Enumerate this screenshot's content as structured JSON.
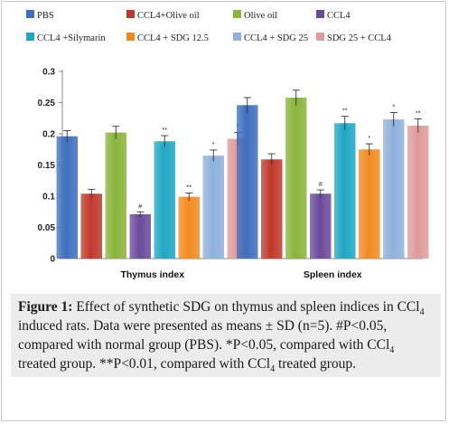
{
  "chart_data": {
    "type": "bar",
    "categories": [
      "Thymus index",
      "Spleen index"
    ],
    "ylim": [
      0,
      0.3
    ],
    "yticks": [
      "0",
      "0.05",
      "0.1",
      "0.15",
      "0.2",
      "0.25",
      "0.3"
    ],
    "legend_position": "top",
    "series": [
      {
        "name": "PBS",
        "color": "#3f6fbf",
        "values": [
          0.196,
          0.246
        ],
        "errors": [
          0.009,
          0.012
        ],
        "sig": [
          "",
          ""
        ]
      },
      {
        "name": "CCL4+Olive oil",
        "color": "#c0392b",
        "values": [
          0.104,
          0.159
        ],
        "errors": [
          0.007,
          0.009
        ],
        "sig": [
          "",
          ""
        ]
      },
      {
        "name": "Olive oil",
        "color": "#8ab43a",
        "values": [
          0.202,
          0.258
        ],
        "errors": [
          0.01,
          0.012
        ],
        "sig": [
          "",
          ""
        ]
      },
      {
        "name": "CCL4",
        "color": "#6b4a9a",
        "values": [
          0.071,
          0.104
        ],
        "errors": [
          0.004,
          0.006
        ],
        "sig": [
          "#",
          "#"
        ]
      },
      {
        "name": "CCL4 +Silymarin",
        "color": "#1fa7c4",
        "values": [
          0.188,
          0.217
        ],
        "errors": [
          0.009,
          0.011
        ],
        "sig": [
          "**",
          "**"
        ]
      },
      {
        "name": "CCL4 + SDG 12.5",
        "color": "#f28a1e",
        "values": [
          0.099,
          0.175
        ],
        "errors": [
          0.006,
          0.009
        ],
        "sig": [
          "**",
          "*"
        ]
      },
      {
        "name": "CCL4 + SDG 25",
        "color": "#8fb0dc",
        "values": [
          0.165,
          0.223
        ],
        "errors": [
          0.009,
          0.011
        ],
        "sig": [
          "*",
          "*"
        ]
      },
      {
        "name": "SDG 25 + CCL4",
        "color": "#e09a9a",
        "values": [
          0.192,
          0.213
        ],
        "errors": [
          0.01,
          0.011
        ],
        "sig": [
          "*",
          "**"
        ]
      }
    ]
  },
  "caption": {
    "label": "Figure 1:",
    "text_1": " Effect of synthetic SDG on thymus and spleen indices in CCl",
    "sub_1": "4",
    "text_2": " induced rats.        Data were presented as means ± SD (n=5). #P<0.05, compared with normal group (PBS). *P<0.05, compared with CCl",
    "sub_2": "4",
    "text_3": " treated group. **P<0.01, compared with CCl",
    "sub_3": "4",
    "text_4": " treated group."
  }
}
